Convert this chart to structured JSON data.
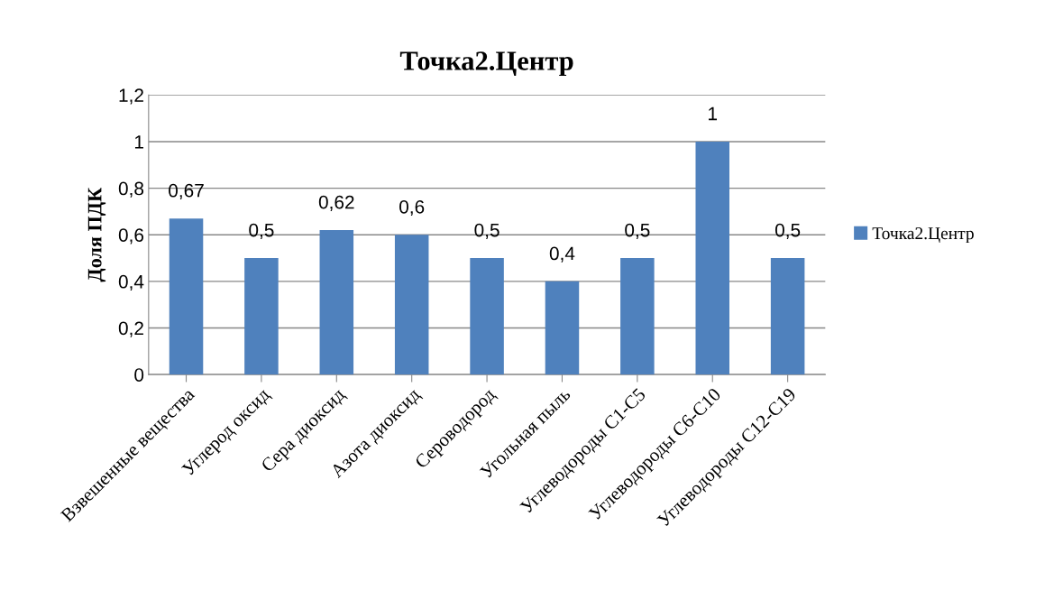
{
  "chart_data": {
    "type": "bar",
    "title": "Точка2.Центр",
    "ylabel": "Доля ПДК",
    "categories": [
      "Взвешенные вещества",
      "Углерод оксид",
      "Сера диоксид",
      "Азота диоксид",
      "Сероводород",
      "Угольная пыль",
      "Углеводороды С1-С5",
      "Углеводороды С6-С10",
      "Углеводороды С12-С19"
    ],
    "series": [
      {
        "name": "Точка2.Центр",
        "color": "#4f81bd",
        "values": [
          0.67,
          0.5,
          0.62,
          0.6,
          0.5,
          0.4,
          0.5,
          1,
          0.5
        ],
        "value_labels": [
          "0,67",
          "0,5",
          "0,62",
          "0,6",
          "0,5",
          "0,4",
          "0,5",
          "1",
          "0,5"
        ]
      }
    ],
    "ylim": [
      0,
      1.2
    ],
    "yticks": [
      0,
      {
        "value": 0.2,
        "label": "0,2"
      },
      {
        "value": 0.4,
        "label": "0,4"
      },
      {
        "value": 0.6,
        "label": "0,6"
      },
      {
        "value": 0.8,
        "label": "0,8"
      },
      1,
      {
        "value": 1.2,
        "label": "1,2"
      }
    ],
    "grid": "y",
    "legend": "right"
  }
}
